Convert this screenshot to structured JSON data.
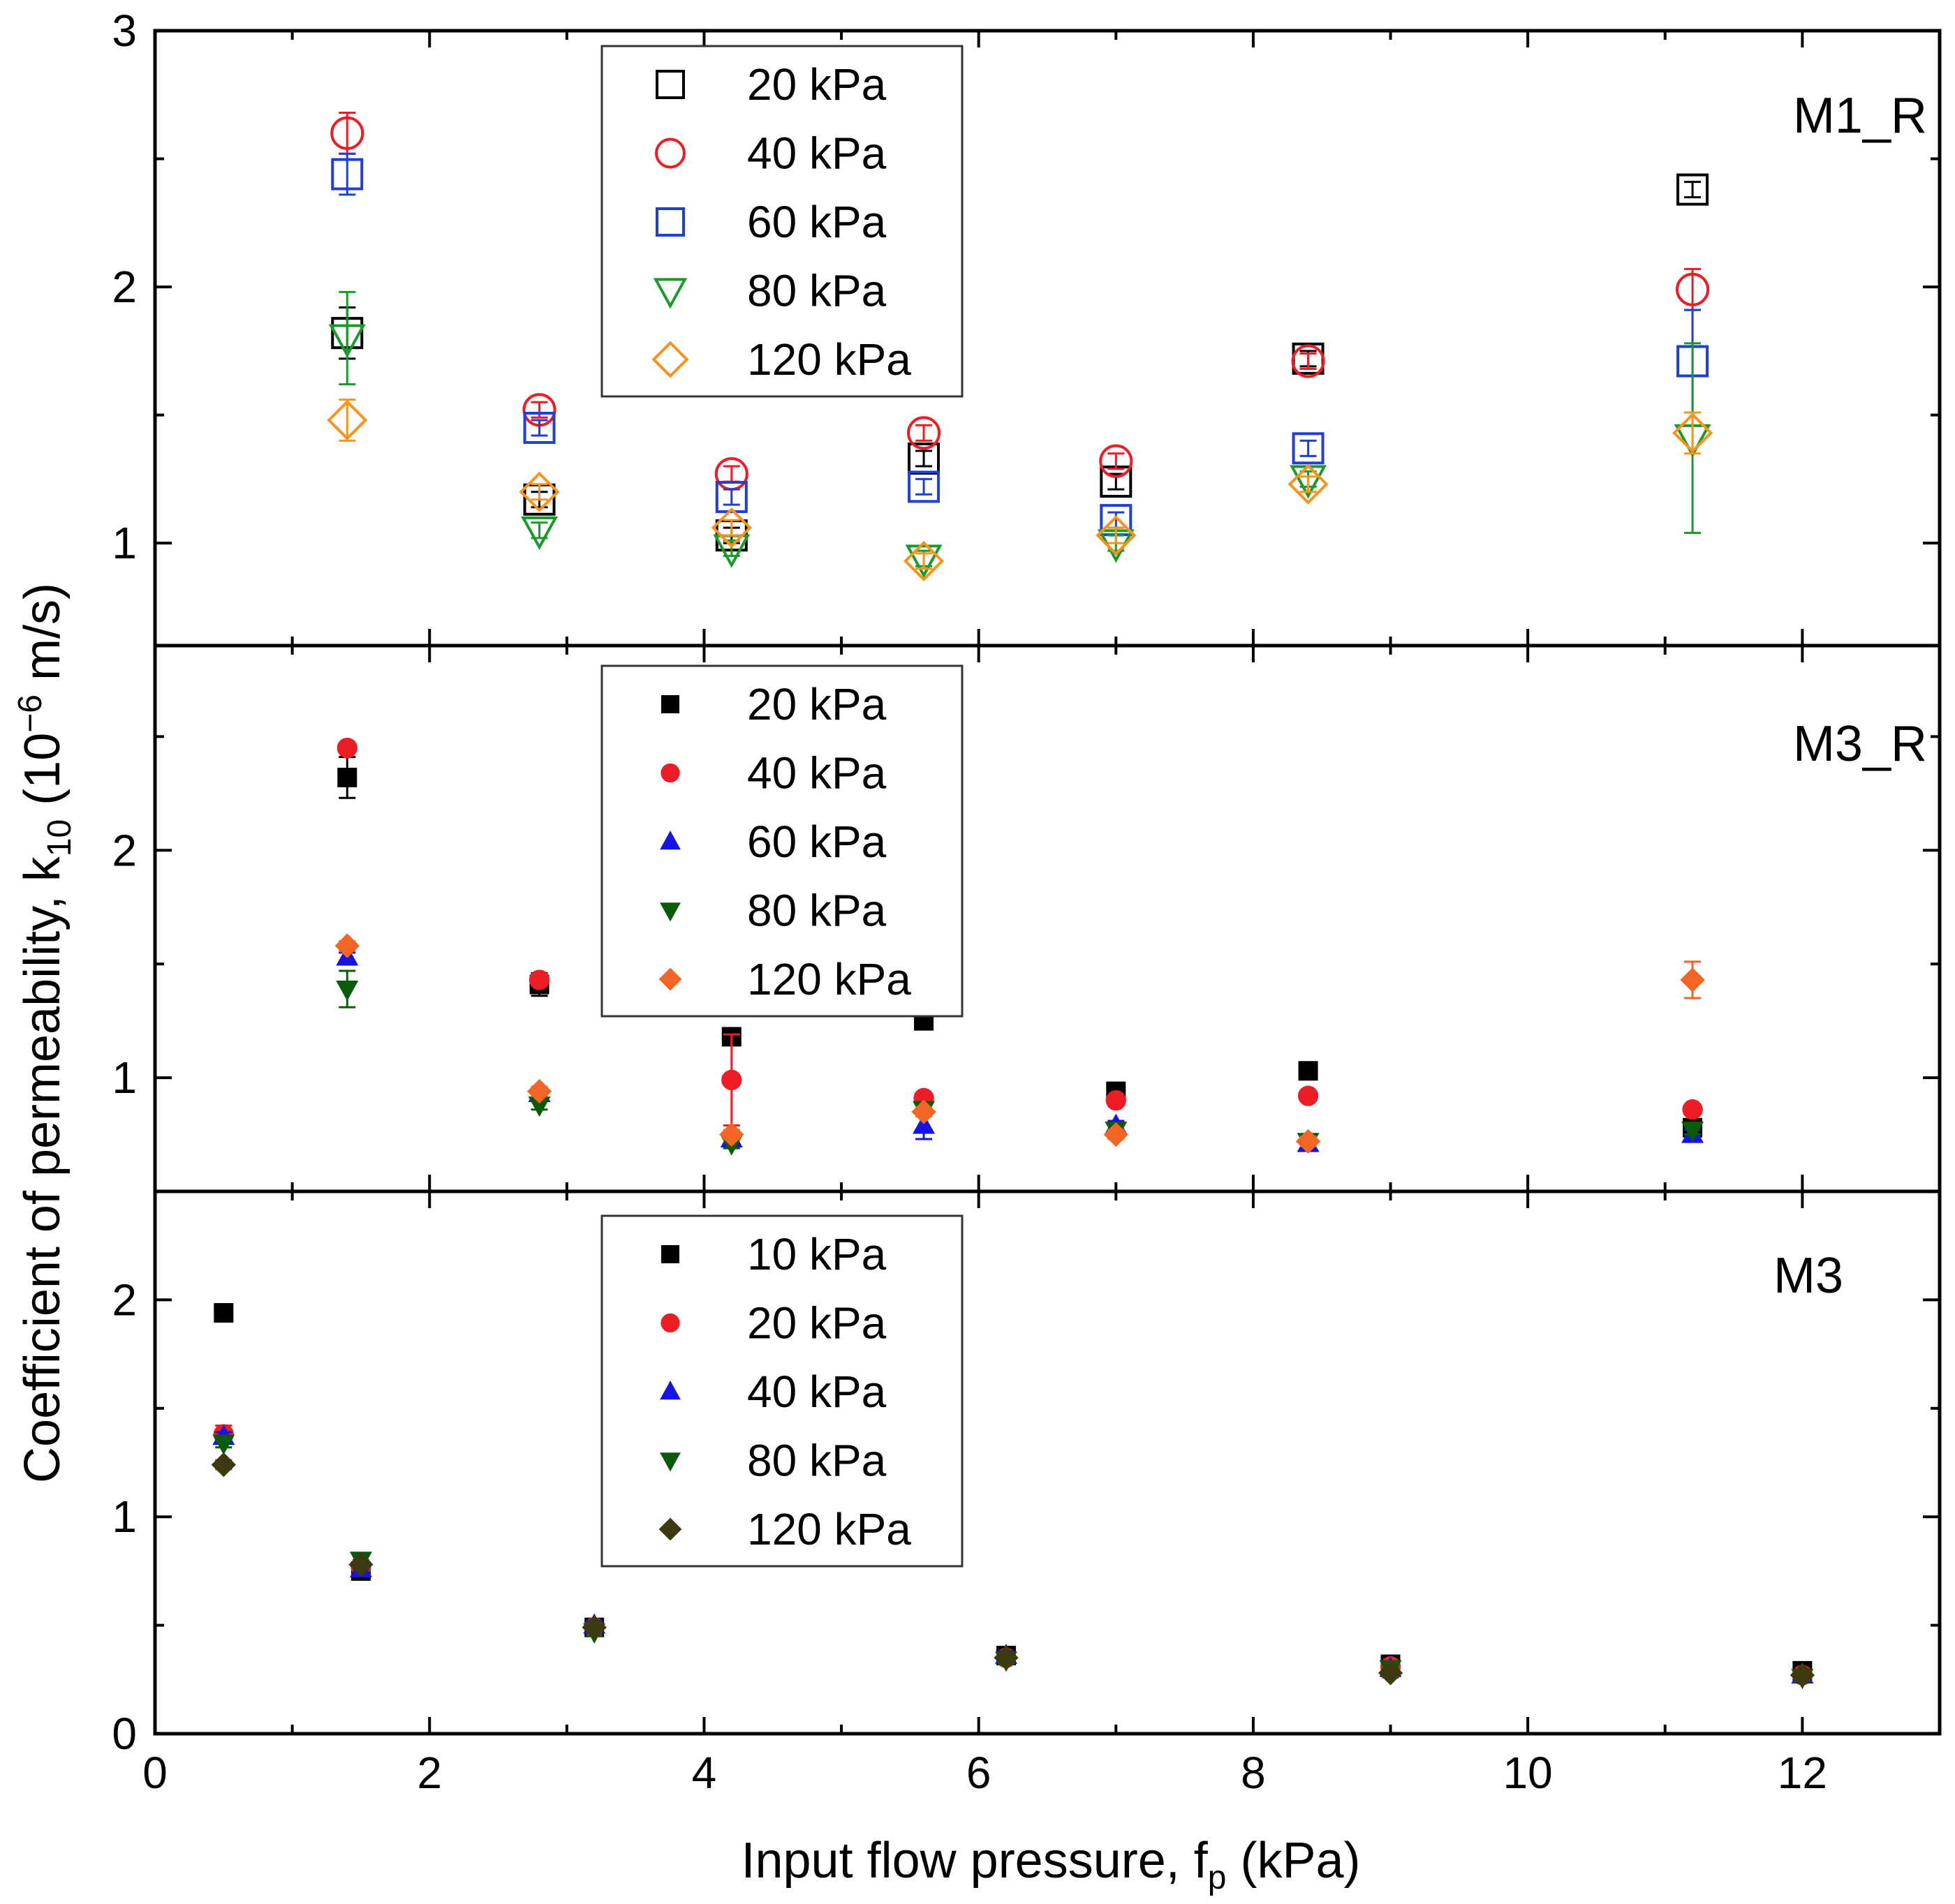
{
  "chart_data": {
    "type": "scatter",
    "xlabel": "Input flow pressure, f",
    "xlabel_sub": "p",
    "xlabel_unit": " (kPa)",
    "ylabel": "Coefficient of permeability, k",
    "ylabel_sub": "10",
    "ylabel_unit": " (10",
    "ylabel_exp": "−6",
    "ylabel_tail": " m/s)",
    "xlim": [
      0,
      13
    ],
    "xticks": [
      0,
      2,
      4,
      6,
      8,
      10,
      12
    ],
    "xtick_labels": [
      "0",
      "2",
      "4",
      "6",
      "8",
      "10",
      "12"
    ],
    "panels": [
      {
        "label": "M1_R",
        "ylim": [
          0.6,
          3.0
        ],
        "yticks": [
          1,
          2,
          3
        ],
        "ytick_labels": [
          "1",
          "2",
          "3"
        ],
        "series": [
          {
            "name": "20 kPa",
            "marker": "square",
            "filled": false,
            "color": "#000000",
            "x": [
              1.4,
              2.8,
              4.2,
              5.6,
              7.0,
              8.4,
              11.2
            ],
            "y": [
              1.82,
              1.17,
              1.03,
              1.33,
              1.24,
              1.72,
              2.38
            ],
            "err": [
              0.1,
              0.03,
              0.03,
              0.03,
              0.03,
              0.03,
              0.03
            ]
          },
          {
            "name": "40 kPa",
            "marker": "circle",
            "filled": false,
            "color": "#ee1c24",
            "x": [
              1.4,
              2.8,
              4.2,
              5.6,
              7.0,
              8.4,
              11.2
            ],
            "y": [
              2.6,
              1.52,
              1.27,
              1.43,
              1.32,
              1.71,
              1.99
            ],
            "err": [
              0.08,
              0.03,
              0.03,
              0.03,
              0.03,
              0.03,
              0.08
            ]
          },
          {
            "name": "60 kPa",
            "marker": "square",
            "filled": false,
            "color": "#1f3fd6",
            "x": [
              1.4,
              2.8,
              4.2,
              5.6,
              7.0,
              8.4,
              11.2
            ],
            "y": [
              2.44,
              1.45,
              1.18,
              1.22,
              1.09,
              1.37,
              1.71
            ],
            "err": [
              0.08,
              0.03,
              0.03,
              0.03,
              0.03,
              0.03,
              0.2
            ]
          },
          {
            "name": "80 kPa",
            "marker": "triangle-down",
            "filled": false,
            "color": "#1a9a2a",
            "x": [
              1.4,
              2.8,
              4.2,
              5.6,
              7.0,
              8.4,
              11.2
            ],
            "y": [
              1.8,
              1.05,
              0.98,
              0.94,
              1.0,
              1.25,
              1.41
            ],
            "err": [
              0.18,
              0.03,
              0.03,
              0.03,
              0.03,
              0.03,
              0.37
            ]
          },
          {
            "name": "120 kPa",
            "marker": "diamond",
            "filled": false,
            "color": "#f7941d",
            "x": [
              1.4,
              2.8,
              4.2,
              5.6,
              7.0,
              8.4,
              11.2
            ],
            "y": [
              1.48,
              1.2,
              1.06,
              0.93,
              1.03,
              1.23,
              1.43
            ],
            "err": [
              0.08,
              0.03,
              0.03,
              0.03,
              0.03,
              0.03,
              0.08
            ]
          }
        ]
      },
      {
        "label": "M3_R",
        "ylim": [
          0.5,
          2.9
        ],
        "yticks": [
          1,
          2
        ],
        "ytick_labels": [
          "1",
          "2"
        ],
        "series": [
          {
            "name": "20 kPa",
            "marker": "square",
            "filled": true,
            "color": "#000000",
            "x": [
              1.4,
              2.8,
              4.2,
              5.6,
              7.0,
              8.4,
              11.2
            ],
            "y": [
              2.32,
              1.41,
              1.18,
              1.25,
              0.94,
              1.03,
              0.78
            ],
            "err": [
              0.09,
              0.05,
              0.02,
              0.02,
              0.02,
              0.02,
              0.02
            ]
          },
          {
            "name": "40 kPa",
            "marker": "circle",
            "filled": true,
            "color": "#ee1c24",
            "x": [
              1.4,
              2.8,
              4.2,
              5.6,
              7.0,
              8.4,
              11.2
            ],
            "y": [
              2.45,
              1.43,
              0.99,
              0.91,
              0.9,
              0.92,
              0.86
            ],
            "err": [
              0.02,
              0.02,
              0.2,
              0.02,
              0.02,
              0.02,
              0.02
            ]
          },
          {
            "name": "60 kPa",
            "marker": "triangle-up",
            "filled": true,
            "color": "#1414e6",
            "x": [
              1.4,
              2.8,
              4.2,
              5.6,
              7.0,
              8.4,
              11.2
            ],
            "y": [
              1.53,
              0.93,
              0.73,
              0.79,
              0.79,
              0.71,
              0.75
            ],
            "err": [
              0.02,
              0.02,
              0.02,
              0.06,
              0.02,
              0.02,
              0.02
            ]
          },
          {
            "name": "80 kPa",
            "marker": "triangle-down",
            "filled": true,
            "color": "#0a5a0a",
            "x": [
              1.4,
              2.8,
              4.2,
              5.6,
              7.0,
              8.4,
              11.2
            ],
            "y": [
              1.39,
              0.88,
              0.71,
              0.86,
              0.77,
              0.72,
              0.77
            ],
            "err": [
              0.08,
              0.02,
              0.02,
              0.02,
              0.02,
              0.02,
              0.02
            ]
          },
          {
            "name": "120 kPa",
            "marker": "diamond",
            "filled": true,
            "color": "#f26522",
            "x": [
              1.4,
              2.8,
              4.2,
              5.6,
              7.0,
              8.4,
              11.2
            ],
            "y": [
              1.58,
              0.94,
              0.75,
              0.85,
              0.75,
              0.72,
              1.43
            ],
            "err": [
              0.02,
              0.02,
              0.02,
              0.02,
              0.02,
              0.02,
              0.08
            ]
          }
        ]
      },
      {
        "label": "M3",
        "ylim": [
          0,
          2.5
        ],
        "yticks": [
          0,
          1,
          2
        ],
        "ytick_labels": [
          "0",
          "1",
          "2"
        ],
        "series": [
          {
            "name": "10 kPa",
            "marker": "square",
            "filled": true,
            "color": "#000000",
            "x": [
              0.5,
              1.5,
              3.2,
              6.2,
              9.0,
              12.0
            ],
            "y": [
              1.94,
              0.75,
              0.49,
              0.36,
              0.32,
              0.29
            ],
            "err": [
              0.04,
              0.02,
              0.02,
              0.02,
              0.02,
              0.02
            ]
          },
          {
            "name": "20 kPa",
            "marker": "circle",
            "filled": true,
            "color": "#ee1c24",
            "x": [
              0.5,
              1.5,
              3.2,
              6.2,
              9.0,
              12.0
            ],
            "y": [
              1.38,
              0.77,
              0.49,
              0.35,
              0.31,
              0.27
            ],
            "err": [
              0.04,
              0.02,
              0.02,
              0.02,
              0.02,
              0.02
            ]
          },
          {
            "name": "40 kPa",
            "marker": "triangle-up",
            "filled": true,
            "color": "#1414e6",
            "x": [
              0.5,
              1.5,
              3.2,
              6.2,
              9.0,
              12.0
            ],
            "y": [
              1.37,
              0.76,
              0.5,
              0.36,
              0.3,
              0.27
            ],
            "err": [
              0.02,
              0.02,
              0.02,
              0.02,
              0.02,
              0.02
            ]
          },
          {
            "name": "80 kPa",
            "marker": "triangle-down",
            "filled": true,
            "color": "#0a5a0a",
            "x": [
              0.5,
              1.5,
              3.2,
              6.2,
              9.0,
              12.0
            ],
            "y": [
              1.34,
              0.8,
              0.47,
              0.34,
              0.3,
              0.26
            ],
            "err": [
              0.02,
              0.02,
              0.02,
              0.02,
              0.02,
              0.02
            ]
          },
          {
            "name": "120 kPa",
            "marker": "diamond",
            "filled": true,
            "color": "#3d3a10",
            "x": [
              0.5,
              1.5,
              3.2,
              6.2,
              9.0,
              12.0
            ],
            "y": [
              1.24,
              0.78,
              0.49,
              0.35,
              0.28,
              0.27
            ],
            "err": [
              0.02,
              0.02,
              0.02,
              0.02,
              0.02,
              0.02
            ]
          }
        ]
      }
    ]
  }
}
